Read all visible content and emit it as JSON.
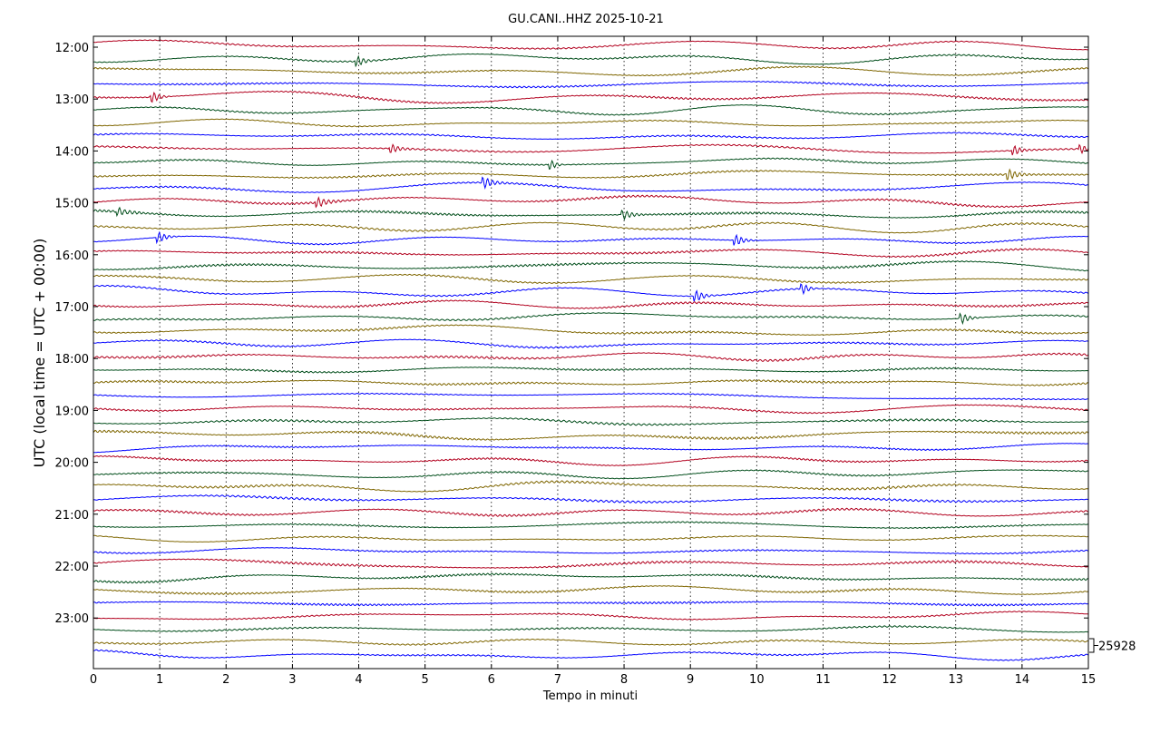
{
  "chart_data": {
    "type": "line",
    "title": "GU.CANI..HHZ 2025-10-21",
    "xlabel": "Tempo in minuti",
    "ylabel": "UTC (local time = UTC + 00:00)",
    "xlim": [
      0,
      15
    ],
    "x_ticks": [
      "0",
      "1",
      "2",
      "3",
      "4",
      "5",
      "6",
      "7",
      "8",
      "9",
      "10",
      "11",
      "12",
      "13",
      "14",
      "15"
    ],
    "y_ticks": [
      "12:00",
      "13:00",
      "14:00",
      "15:00",
      "16:00",
      "17:00",
      "18:00",
      "19:00",
      "20:00",
      "21:00",
      "22:00",
      "23:00"
    ],
    "traces_per_hour": 4,
    "trace_count": 48,
    "trace_colors": [
      "#b2001e",
      "#004d1a",
      "#7f6600",
      "#0000ff"
    ],
    "grid": "vertical dotted",
    "scale_label": "25928",
    "events": [
      {
        "trace": 1,
        "minute": 4.0
      },
      {
        "trace": 4,
        "minute": 0.9
      },
      {
        "trace": 8,
        "minute": 4.5
      },
      {
        "trace": 8,
        "minute": 13.9
      },
      {
        "trace": 8,
        "minute": 14.9
      },
      {
        "trace": 9,
        "minute": 6.9
      },
      {
        "trace": 10,
        "minute": 13.8
      },
      {
        "trace": 11,
        "minute": 5.9
      },
      {
        "trace": 12,
        "minute": 3.4
      },
      {
        "trace": 13,
        "minute": 0.4
      },
      {
        "trace": 13,
        "minute": 8.0
      },
      {
        "trace": 15,
        "minute": 1.0
      },
      {
        "trace": 15,
        "minute": 9.7
      },
      {
        "trace": 19,
        "minute": 9.1
      },
      {
        "trace": 19,
        "minute": 10.7
      },
      {
        "trace": 21,
        "minute": 13.1
      }
    ]
  }
}
